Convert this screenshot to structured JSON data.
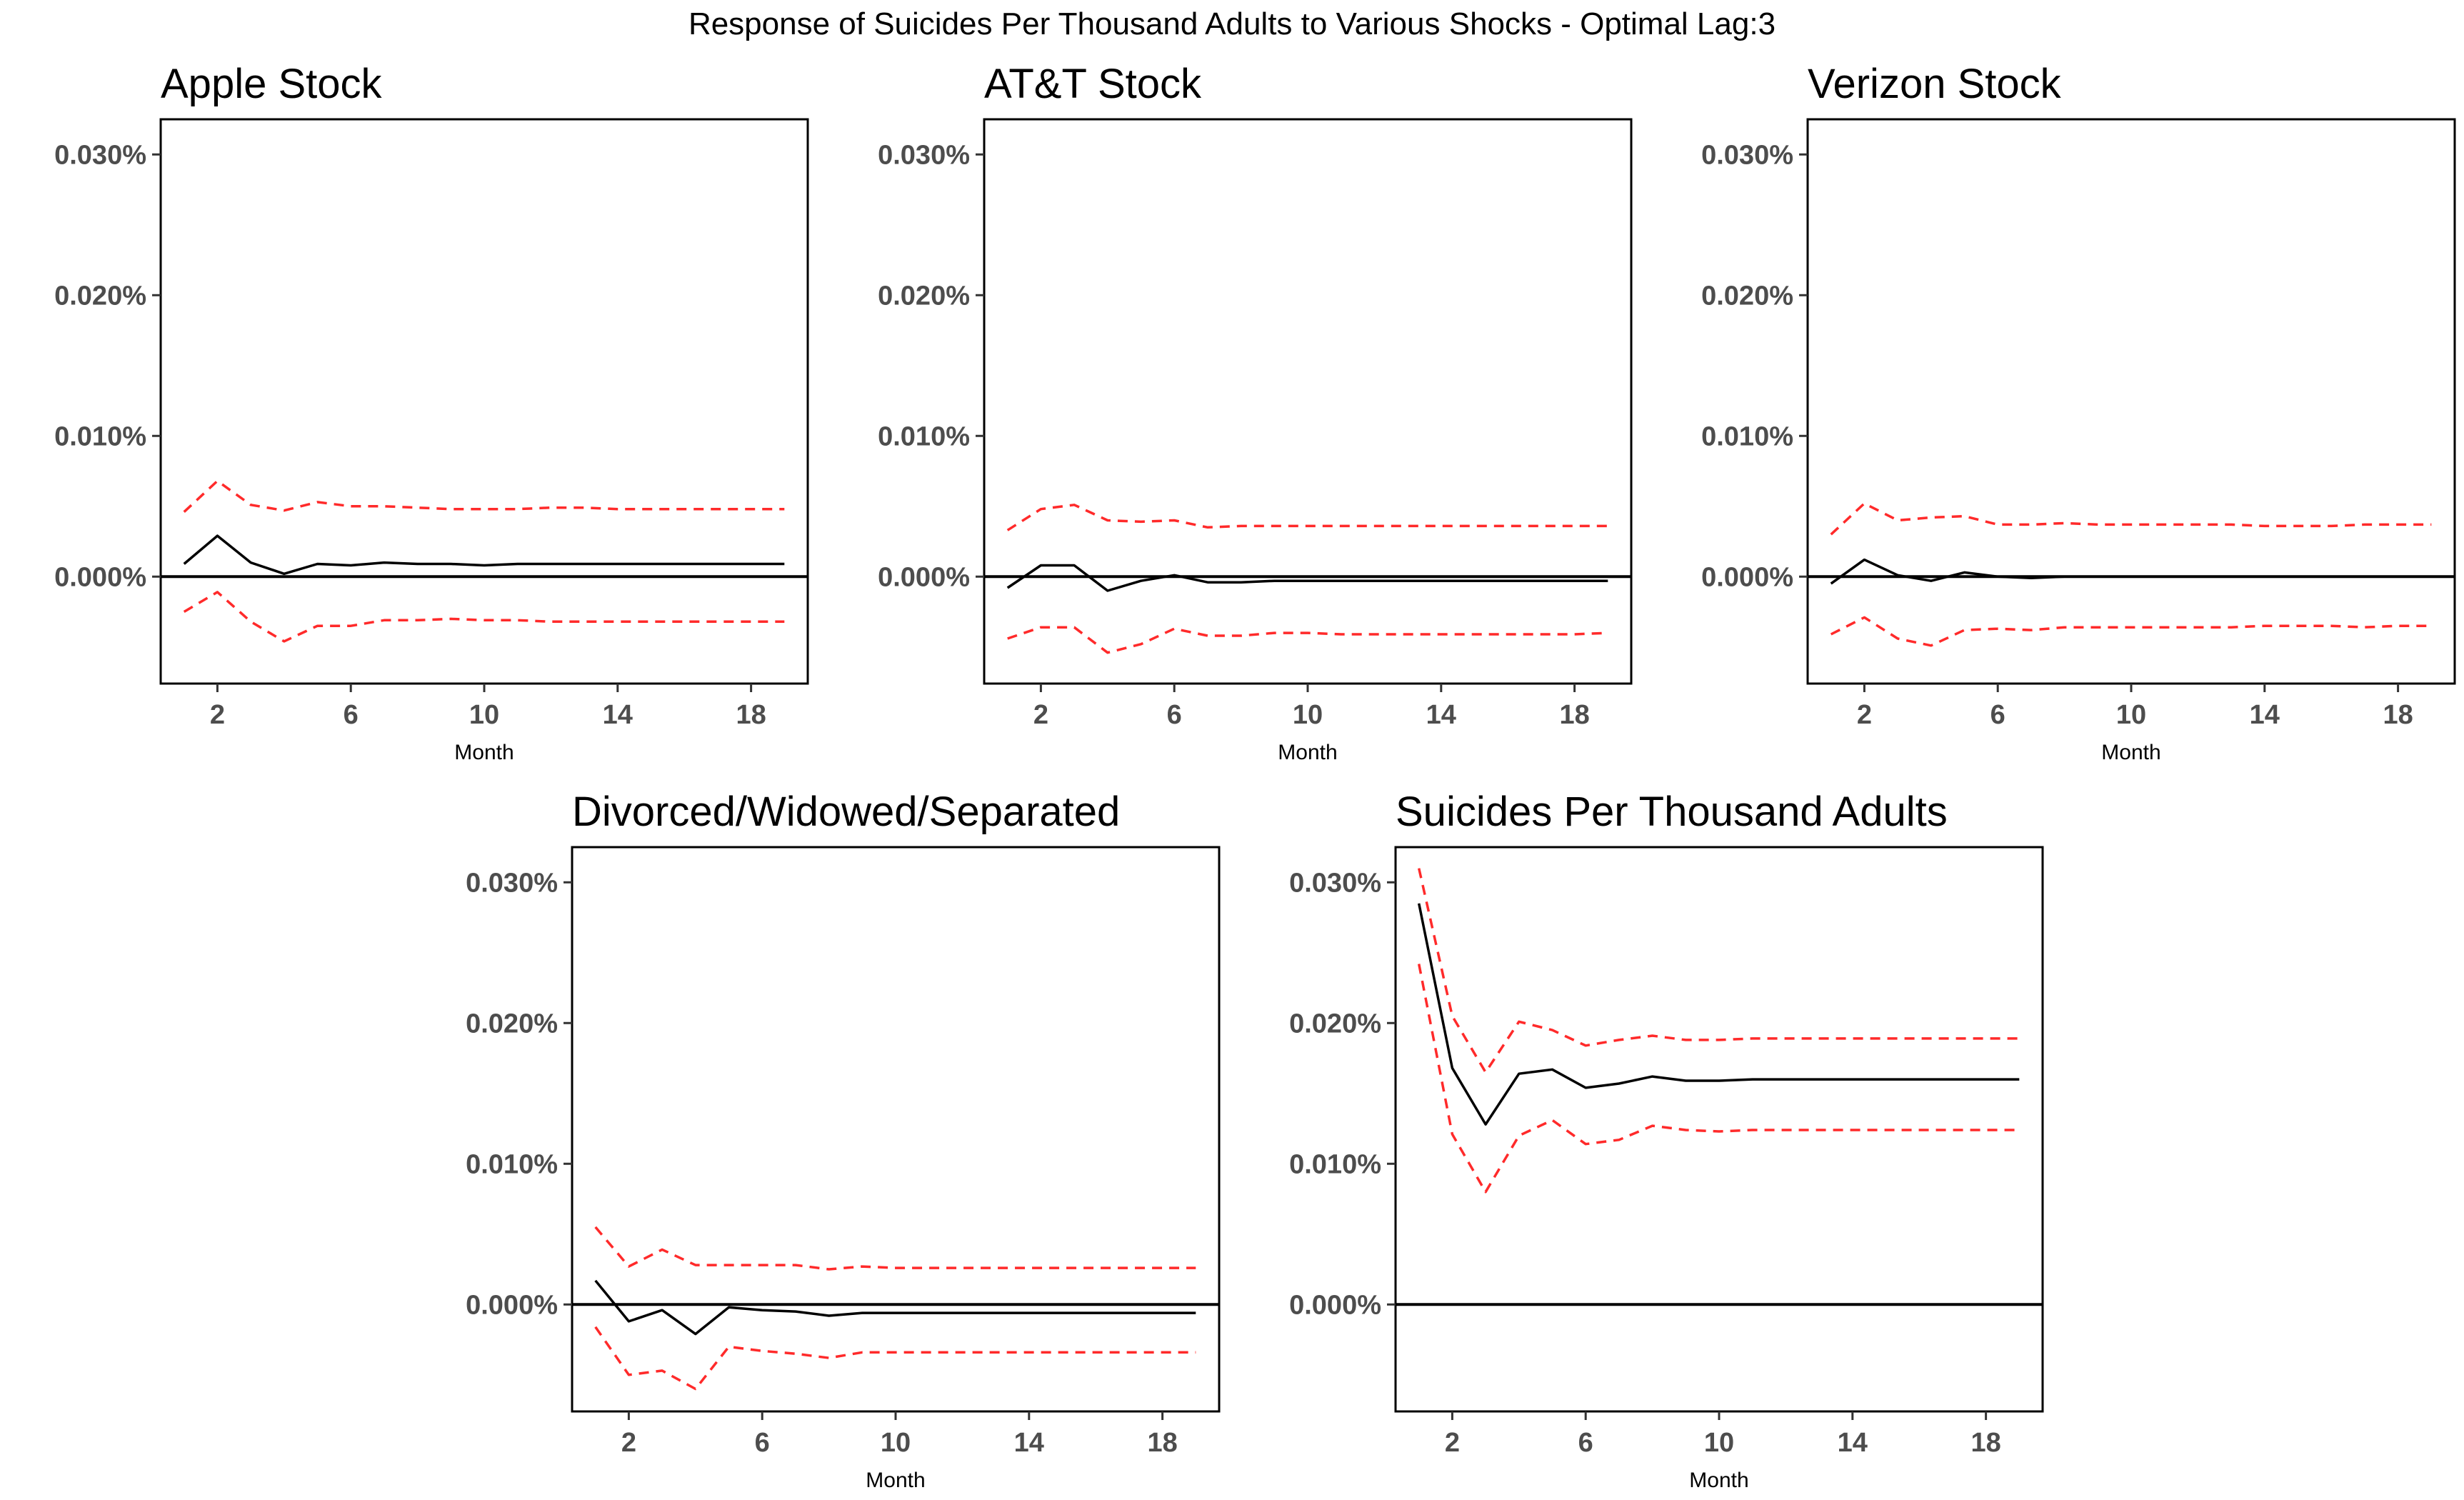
{
  "figure": {
    "title": "Response of Suicides Per Thousand Adults to Various Shocks - Optimal Lag:3"
  },
  "colors": {
    "response_line": "#000000",
    "ci_line": "#ff2a2a",
    "zero_line": "#000000",
    "tick_text": "#4d4d4d",
    "title_text": "#000000"
  },
  "chart_data": [
    {
      "type": "line",
      "title": "Apple Stock",
      "xlabel": "Month",
      "ylabel": "",
      "x_ticks": [
        2,
        6,
        10,
        14,
        18
      ],
      "y_ticks": [
        0.0,
        0.01,
        0.02,
        0.03
      ],
      "y_tick_labels": [
        "0.000%",
        "0.010%",
        "0.020%",
        "0.030%"
      ],
      "xlim": [
        0.3,
        19.7
      ],
      "ylim": [
        -0.0076,
        0.0325
      ],
      "grid": false,
      "x": [
        1,
        2,
        3,
        4,
        5,
        6,
        7,
        8,
        9,
        10,
        11,
        12,
        13,
        14,
        15,
        16,
        17,
        18,
        19
      ],
      "series": [
        {
          "role": "response",
          "style": "solid",
          "values": [
            0.0009,
            0.0029,
            0.001,
            0.0002,
            0.0009,
            0.0008,
            0.001,
            0.0009,
            0.0009,
            0.0008,
            0.0009,
            0.0009,
            0.0009,
            0.0009,
            0.0009,
            0.0009,
            0.0009,
            0.0009,
            0.0009
          ]
        },
        {
          "role": "upper",
          "style": "dashed",
          "values": [
            0.0046,
            0.0068,
            0.0051,
            0.0047,
            0.0053,
            0.005,
            0.005,
            0.0049,
            0.0048,
            0.0048,
            0.0048,
            0.0049,
            0.0049,
            0.0048,
            0.0048,
            0.0048,
            0.0048,
            0.0048,
            0.0048
          ]
        },
        {
          "role": "lower",
          "style": "dashed",
          "values": [
            -0.0025,
            -0.0011,
            -0.0032,
            -0.0046,
            -0.0035,
            -0.0035,
            -0.0031,
            -0.0031,
            -0.003,
            -0.0031,
            -0.0031,
            -0.0032,
            -0.0032,
            -0.0032,
            -0.0032,
            -0.0032,
            -0.0032,
            -0.0032,
            -0.0032
          ]
        }
      ]
    },
    {
      "type": "line",
      "title": "AT&T Stock",
      "xlabel": "Month",
      "ylabel": "",
      "x_ticks": [
        2,
        6,
        10,
        14,
        18
      ],
      "y_ticks": [
        0.0,
        0.01,
        0.02,
        0.03
      ],
      "y_tick_labels": [
        "0.000%",
        "0.010%",
        "0.020%",
        "0.030%"
      ],
      "xlim": [
        0.3,
        19.7
      ],
      "ylim": [
        -0.0076,
        0.0325
      ],
      "grid": false,
      "x": [
        1,
        2,
        3,
        4,
        5,
        6,
        7,
        8,
        9,
        10,
        11,
        12,
        13,
        14,
        15,
        16,
        17,
        18,
        19
      ],
      "series": [
        {
          "role": "response",
          "style": "solid",
          "values": [
            -0.0008,
            0.0008,
            0.0008,
            -0.001,
            -0.0003,
            0.0001,
            -0.0004,
            -0.0004,
            -0.0003,
            -0.0003,
            -0.0003,
            -0.0003,
            -0.0003,
            -0.0003,
            -0.0003,
            -0.0003,
            -0.0003,
            -0.0003,
            -0.0003
          ]
        },
        {
          "role": "upper",
          "style": "dashed",
          "values": [
            0.0033,
            0.0048,
            0.0051,
            0.004,
            0.0039,
            0.004,
            0.0035,
            0.0036,
            0.0036,
            0.0036,
            0.0036,
            0.0036,
            0.0036,
            0.0036,
            0.0036,
            0.0036,
            0.0036,
            0.0036,
            0.0036
          ]
        },
        {
          "role": "lower",
          "style": "dashed",
          "values": [
            -0.0044,
            -0.0036,
            -0.0036,
            -0.0054,
            -0.0048,
            -0.0037,
            -0.0042,
            -0.0042,
            -0.004,
            -0.004,
            -0.0041,
            -0.0041,
            -0.0041,
            -0.0041,
            -0.0041,
            -0.0041,
            -0.0041,
            -0.0041,
            -0.004
          ]
        }
      ]
    },
    {
      "type": "line",
      "title": "Verizon Stock",
      "xlabel": "Month",
      "ylabel": "",
      "x_ticks": [
        2,
        6,
        10,
        14,
        18
      ],
      "y_ticks": [
        0.0,
        0.01,
        0.02,
        0.03
      ],
      "y_tick_labels": [
        "0.000%",
        "0.010%",
        "0.020%",
        "0.030%"
      ],
      "xlim": [
        0.3,
        19.7
      ],
      "ylim": [
        -0.0076,
        0.0325
      ],
      "grid": false,
      "x": [
        1,
        2,
        3,
        4,
        5,
        6,
        7,
        8,
        9,
        10,
        11,
        12,
        13,
        14,
        15,
        16,
        17,
        18,
        19
      ],
      "series": [
        {
          "role": "response",
          "style": "solid",
          "values": [
            -0.0005,
            0.0012,
            0.0001,
            -0.0003,
            0.0003,
            0.0,
            -0.0001,
            0.0,
            0.0,
            0.0,
            0.0,
            0.0,
            0.0,
            0.0,
            0.0,
            0.0,
            0.0,
            0.0,
            0.0
          ]
        },
        {
          "role": "upper",
          "style": "dashed",
          "values": [
            0.003,
            0.0052,
            0.004,
            0.0042,
            0.0043,
            0.0037,
            0.0037,
            0.0038,
            0.0037,
            0.0037,
            0.0037,
            0.0037,
            0.0037,
            0.0036,
            0.0036,
            0.0036,
            0.0037,
            0.0037,
            0.0037
          ]
        },
        {
          "role": "lower",
          "style": "dashed",
          "values": [
            -0.0041,
            -0.0029,
            -0.0044,
            -0.0049,
            -0.0038,
            -0.0037,
            -0.0038,
            -0.0036,
            -0.0036,
            -0.0036,
            -0.0036,
            -0.0036,
            -0.0036,
            -0.0035,
            -0.0035,
            -0.0035,
            -0.0036,
            -0.0035,
            -0.0035
          ]
        }
      ]
    },
    {
      "type": "line",
      "title": "Divorced/Widowed/Separated",
      "xlabel": "Month",
      "ylabel": "",
      "x_ticks": [
        2,
        6,
        10,
        14,
        18
      ],
      "y_ticks": [
        0.0,
        0.01,
        0.02,
        0.03
      ],
      "y_tick_labels": [
        "0.000%",
        "0.010%",
        "0.020%",
        "0.030%"
      ],
      "xlim": [
        0.3,
        19.7
      ],
      "ylim": [
        -0.0076,
        0.0325
      ],
      "grid": false,
      "x": [
        1,
        2,
        3,
        4,
        5,
        6,
        7,
        8,
        9,
        10,
        11,
        12,
        13,
        14,
        15,
        16,
        17,
        18,
        19
      ],
      "series": [
        {
          "role": "response",
          "style": "solid",
          "values": [
            0.0017,
            -0.0012,
            -0.0004,
            -0.0021,
            -0.0002,
            -0.0004,
            -0.0005,
            -0.0008,
            -0.0006,
            -0.0006,
            -0.0006,
            -0.0006,
            -0.0006,
            -0.0006,
            -0.0006,
            -0.0006,
            -0.0006,
            -0.0006,
            -0.0006
          ]
        },
        {
          "role": "upper",
          "style": "dashed",
          "values": [
            0.0055,
            0.0027,
            0.0039,
            0.0028,
            0.0028,
            0.0028,
            0.0028,
            0.0025,
            0.0027,
            0.0026,
            0.0026,
            0.0026,
            0.0026,
            0.0026,
            0.0026,
            0.0026,
            0.0026,
            0.0026,
            0.0026
          ]
        },
        {
          "role": "lower",
          "style": "dashed",
          "values": [
            -0.0016,
            -0.005,
            -0.0047,
            -0.006,
            -0.003,
            -0.0033,
            -0.0035,
            -0.0038,
            -0.0034,
            -0.0034,
            -0.0034,
            -0.0034,
            -0.0034,
            -0.0034,
            -0.0034,
            -0.0034,
            -0.0034,
            -0.0034,
            -0.0034
          ]
        }
      ]
    },
    {
      "type": "line",
      "title": "Suicides Per Thousand Adults",
      "xlabel": "Month",
      "ylabel": "",
      "x_ticks": [
        2,
        6,
        10,
        14,
        18
      ],
      "y_ticks": [
        0.0,
        0.01,
        0.02,
        0.03
      ],
      "y_tick_labels": [
        "0.000%",
        "0.010%",
        "0.020%",
        "0.030%"
      ],
      "xlim": [
        0.3,
        19.7
      ],
      "ylim": [
        -0.0076,
        0.0325
      ],
      "grid": false,
      "x": [
        1,
        2,
        3,
        4,
        5,
        6,
        7,
        8,
        9,
        10,
        11,
        12,
        13,
        14,
        15,
        16,
        17,
        18,
        19
      ],
      "series": [
        {
          "role": "response",
          "style": "solid",
          "values": [
            0.0285,
            0.0168,
            0.0128,
            0.0164,
            0.0167,
            0.0154,
            0.0157,
            0.0162,
            0.0159,
            0.0159,
            0.016,
            0.016,
            0.016,
            0.016,
            0.016,
            0.016,
            0.016,
            0.016,
            0.016
          ]
        },
        {
          "role": "upper",
          "style": "dashed",
          "values": [
            0.031,
            0.0205,
            0.0165,
            0.0201,
            0.0195,
            0.0184,
            0.0188,
            0.0191,
            0.0188,
            0.0188,
            0.0189,
            0.0189,
            0.0189,
            0.0189,
            0.0189,
            0.0189,
            0.0189,
            0.0189,
            0.0189
          ]
        },
        {
          "role": "lower",
          "style": "dashed",
          "values": [
            0.0242,
            0.0121,
            0.008,
            0.012,
            0.0131,
            0.0114,
            0.0117,
            0.0127,
            0.0124,
            0.0123,
            0.0124,
            0.0124,
            0.0124,
            0.0124,
            0.0124,
            0.0124,
            0.0124,
            0.0124,
            0.0124
          ]
        }
      ]
    }
  ]
}
